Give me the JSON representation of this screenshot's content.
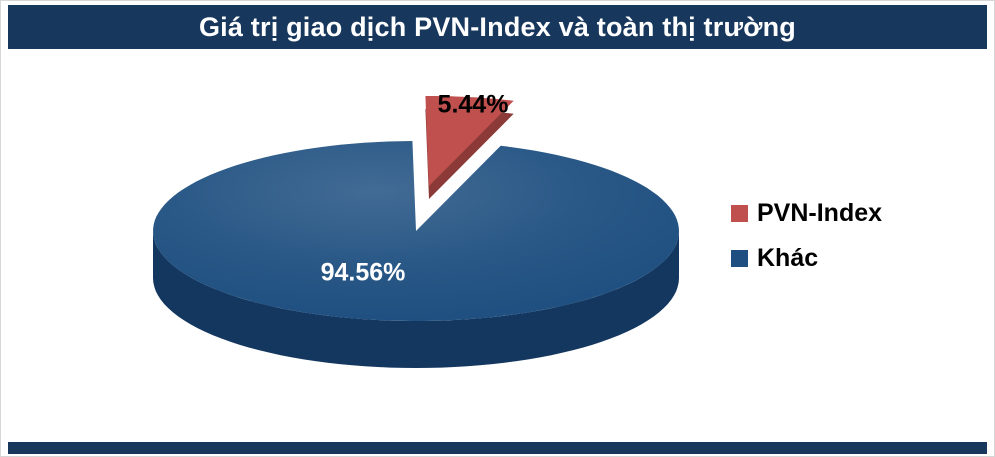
{
  "chart_data": {
    "type": "pie",
    "style": "3d-exploded",
    "title": "Giá trị giao dịch PVN-Index và toàn thị trường",
    "unit": "%",
    "slices": [
      {
        "name": "PVN-Index",
        "value": 5.44,
        "label": "5.44%",
        "color": "#C0504D",
        "side_color": "#8C3A38",
        "label_color": "#000000",
        "exploded": true
      },
      {
        "name": "Khác",
        "value": 94.56,
        "label": "94.56%",
        "color": "#1E4F80",
        "side_color": "#143760",
        "label_color": "#FFFFFF",
        "exploded": false
      }
    ],
    "legend": {
      "position": "right",
      "entries": [
        "PVN-Index",
        "Khác"
      ]
    },
    "accent_bar_color": "#17375D"
  }
}
